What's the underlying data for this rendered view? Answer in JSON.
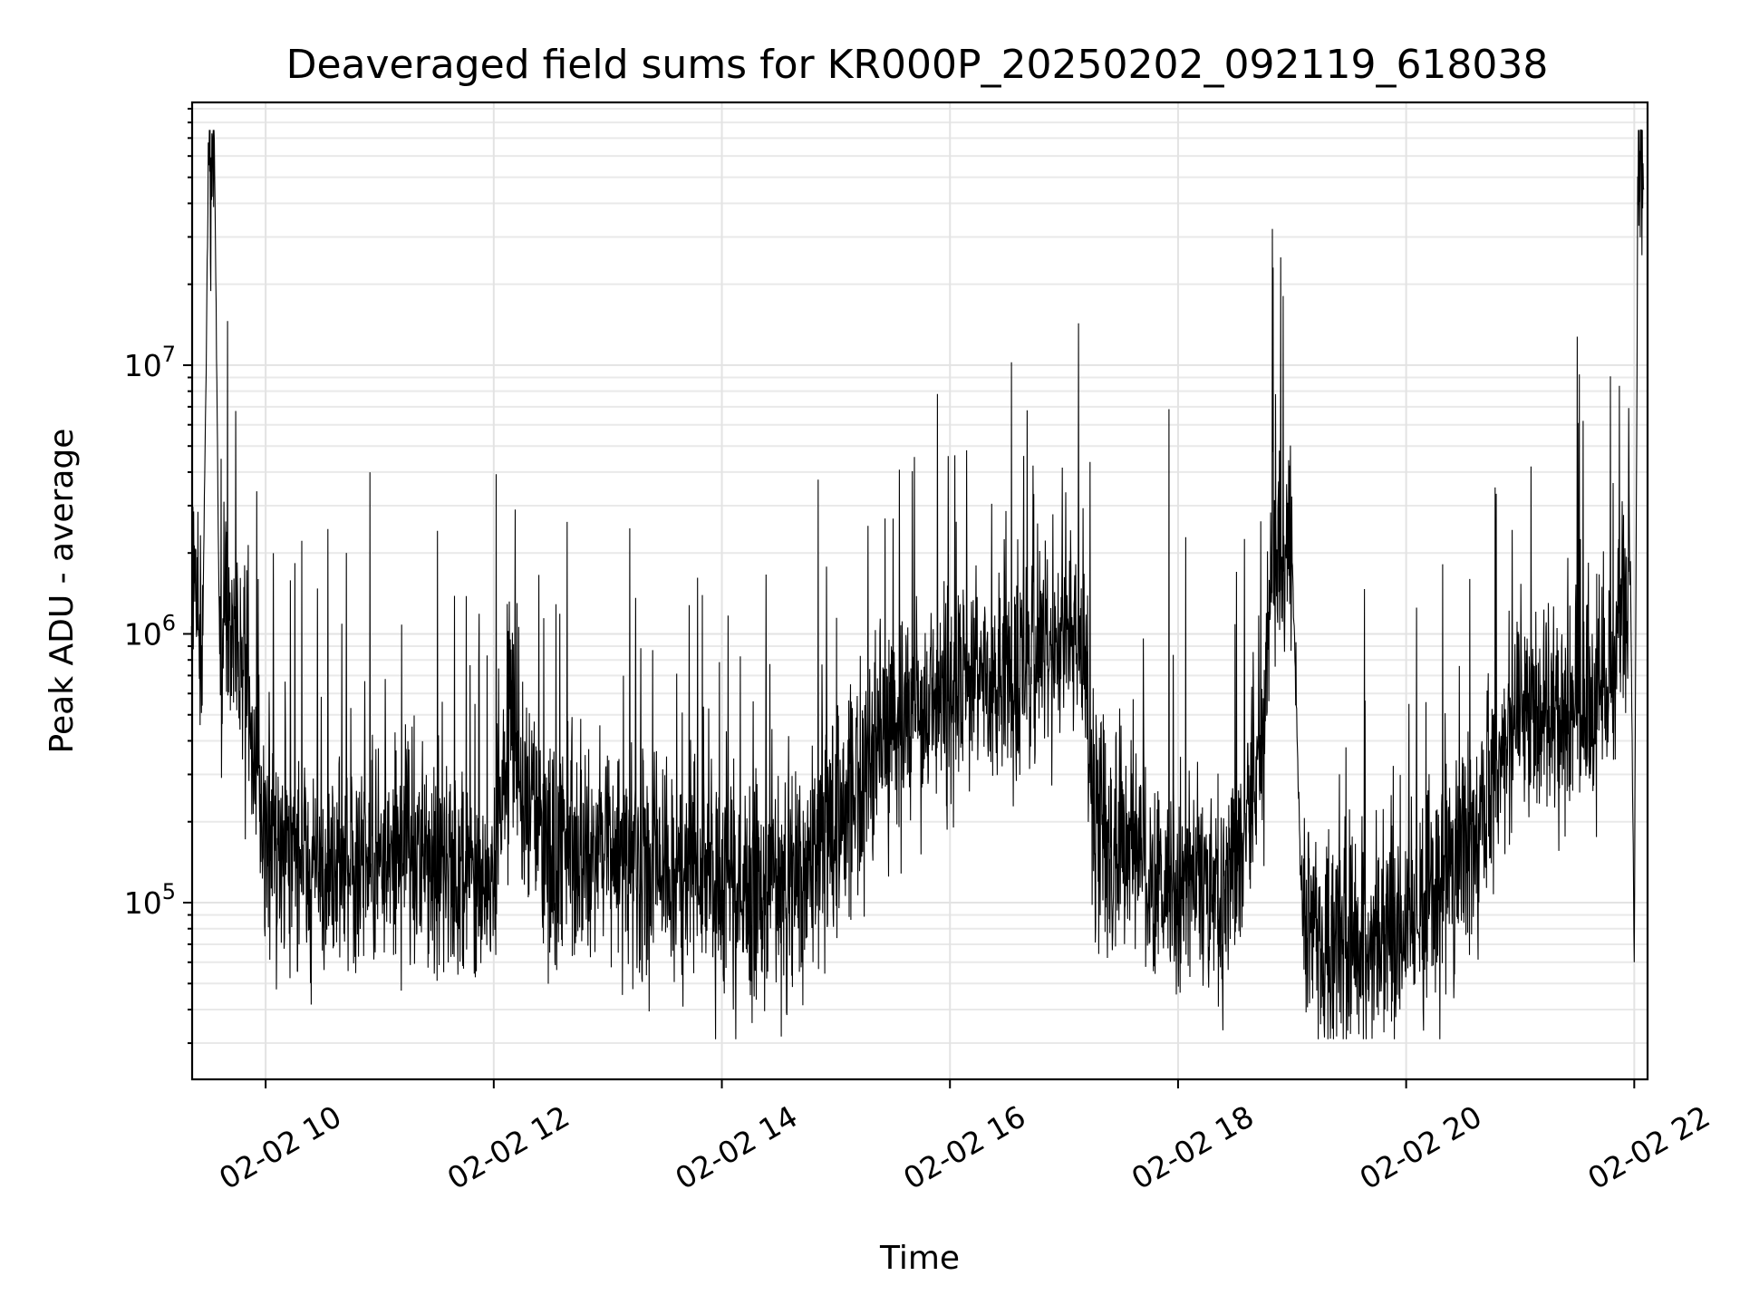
{
  "chart_data": {
    "type": "line",
    "title": "Deaveraged field sums for KR000P_20250202_092119_618038",
    "xlabel": "Time",
    "ylabel": "Peak ADU - average",
    "x_start": "2025-02-02T09:21:19",
    "x_end": "2025-02-02T22:07:00",
    "xlim": [
      "2025-02-02T09:21:19",
      "2025-02-02T22:07:00"
    ],
    "ylim": [
      22000,
      95000000
    ],
    "yscale": "log",
    "grid": true,
    "xticks": [
      "02-02 10",
      "02-02 12",
      "02-02 14",
      "02-02 16",
      "02-02 18",
      "02-02 20",
      "02-02 22"
    ],
    "yticks": [
      {
        "base": "10",
        "exp": "5"
      },
      {
        "base": "10",
        "exp": "6"
      },
      {
        "base": "10",
        "exp": "7"
      }
    ],
    "series": [
      {
        "color": "#000000",
        "x": [
          "2025-02-02T09:21",
          "2025-02-02T09:24",
          "2025-02-02T09:27",
          "2025-02-02T09:30",
          "2025-02-02T09:33",
          "2025-02-02T09:36",
          "2025-02-02T09:39",
          "2025-02-02T09:42",
          "2025-02-02T09:45",
          "2025-02-02T09:48",
          "2025-02-02T09:51",
          "2025-02-02T09:54",
          "2025-02-02T09:57",
          "2025-02-02T10:00",
          "2025-02-02T10:15",
          "2025-02-02T10:30",
          "2025-02-02T10:45",
          "2025-02-02T11:00",
          "2025-02-02T11:30",
          "2025-02-02T12:00",
          "2025-02-02T12:10",
          "2025-02-02T12:15",
          "2025-02-02T12:20",
          "2025-02-02T12:25",
          "2025-02-02T12:30",
          "2025-02-02T13:00",
          "2025-02-02T13:30",
          "2025-02-02T14:00",
          "2025-02-02T14:30",
          "2025-02-02T15:00",
          "2025-02-02T15:20",
          "2025-02-02T15:40",
          "2025-02-02T16:00",
          "2025-02-02T16:30",
          "2025-02-02T17:00",
          "2025-02-02T17:10",
          "2025-02-02T17:15",
          "2025-02-02T17:30",
          "2025-02-02T18:00",
          "2025-02-02T18:30",
          "2025-02-02T18:45",
          "2025-02-02T18:50",
          "2025-02-02T19:00",
          "2025-02-02T19:05",
          "2025-02-02T19:15",
          "2025-02-02T19:30",
          "2025-02-02T20:00",
          "2025-02-02T20:30",
          "2025-02-02T21:00",
          "2025-02-02T21:30",
          "2025-02-02T21:50",
          "2025-02-02T21:58",
          "2025-02-02T22:00",
          "2025-02-02T22:02",
          "2025-02-02T22:05"
        ],
        "y": [
          1100000,
          1500000,
          1100000,
          60000000,
          70000000,
          600000,
          800000,
          1000000,
          900000,
          800000,
          700000,
          350000,
          250000,
          180000,
          150000,
          140000,
          130000,
          150000,
          140000,
          130000,
          500000,
          180000,
          250000,
          150000,
          150000,
          140000,
          130000,
          120000,
          110000,
          200000,
          350000,
          500000,
          600000,
          700000,
          900000,
          1000000,
          200000,
          150000,
          120000,
          110000,
          400000,
          2500000,
          2000000,
          100000,
          65000,
          62000,
          80000,
          150000,
          500000,
          500000,
          800000,
          1800000,
          60000,
          70000000,
          45000000
        ]
      }
    ]
  }
}
